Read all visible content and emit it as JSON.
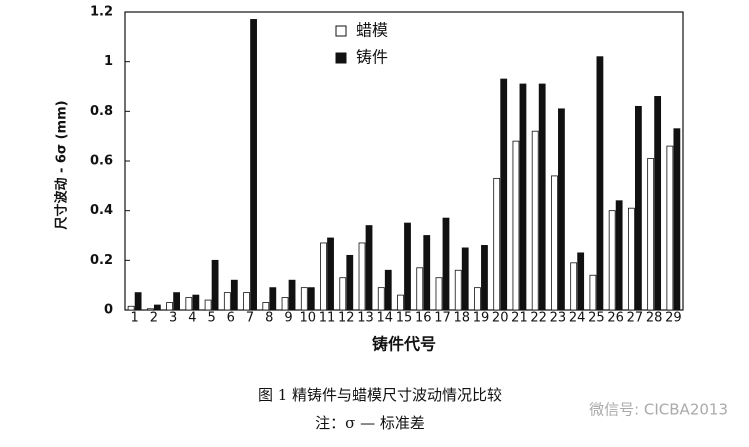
{
  "chart_data": {
    "type": "bar",
    "ylabel": "尺寸波动 - 6σ (mm)",
    "xlabel": "铸件代号",
    "caption": "图 1  精铸件与蜡模尺寸波动情况比较",
    "note": "注：σ —  标准差",
    "watermark": "微信号: CICBA2013",
    "categories": [
      "1",
      "2",
      "3",
      "4",
      "5",
      "6",
      "7",
      "8",
      "9",
      "10",
      "11",
      "12",
      "13",
      "14",
      "15",
      "16",
      "17",
      "18",
      "19",
      "20",
      "21",
      "22",
      "23",
      "24",
      "25",
      "26",
      "27",
      "28",
      "29"
    ],
    "series": [
      {
        "name": "蜡模",
        "color": "#ffffff",
        "values": [
          0.015,
          0.005,
          0.03,
          0.05,
          0.04,
          0.07,
          0.07,
          0.03,
          0.05,
          0.09,
          0.27,
          0.13,
          0.27,
          0.09,
          0.06,
          0.17,
          0.13,
          0.16,
          0.09,
          0.53,
          0.68,
          0.72,
          0.54,
          0.19,
          0.14,
          0.4,
          0.41,
          0.61,
          0.66
        ]
      },
      {
        "name": "铸件",
        "color": "#111111",
        "values": [
          0.07,
          0.02,
          0.07,
          0.06,
          0.2,
          0.12,
          1.17,
          0.09,
          0.12,
          0.09,
          0.29,
          0.22,
          0.34,
          0.16,
          0.35,
          0.3,
          0.37,
          0.25,
          0.26,
          0.93,
          0.91,
          0.91,
          0.81,
          0.23,
          1.02,
          0.44,
          0.82,
          0.86,
          0.73
        ]
      }
    ],
    "ylim": [
      0,
      1.2
    ],
    "yticks": [
      0,
      0.2,
      0.4,
      0.6,
      0.8,
      1,
      1.2
    ]
  }
}
